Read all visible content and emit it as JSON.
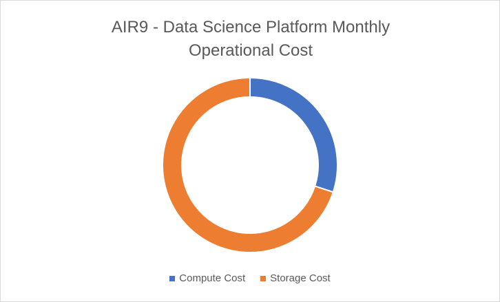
{
  "chart_data": {
    "type": "doughnut",
    "title": "AIR9 - Data Science Platform Monthly Operational Cost",
    "series": [
      {
        "name": "Compute Cost",
        "color": "#4472c4",
        "values": [
          30
        ]
      },
      {
        "name": "Storage Cost",
        "color": "#ed7d31",
        "values": [
          70
        ]
      }
    ]
  }
}
